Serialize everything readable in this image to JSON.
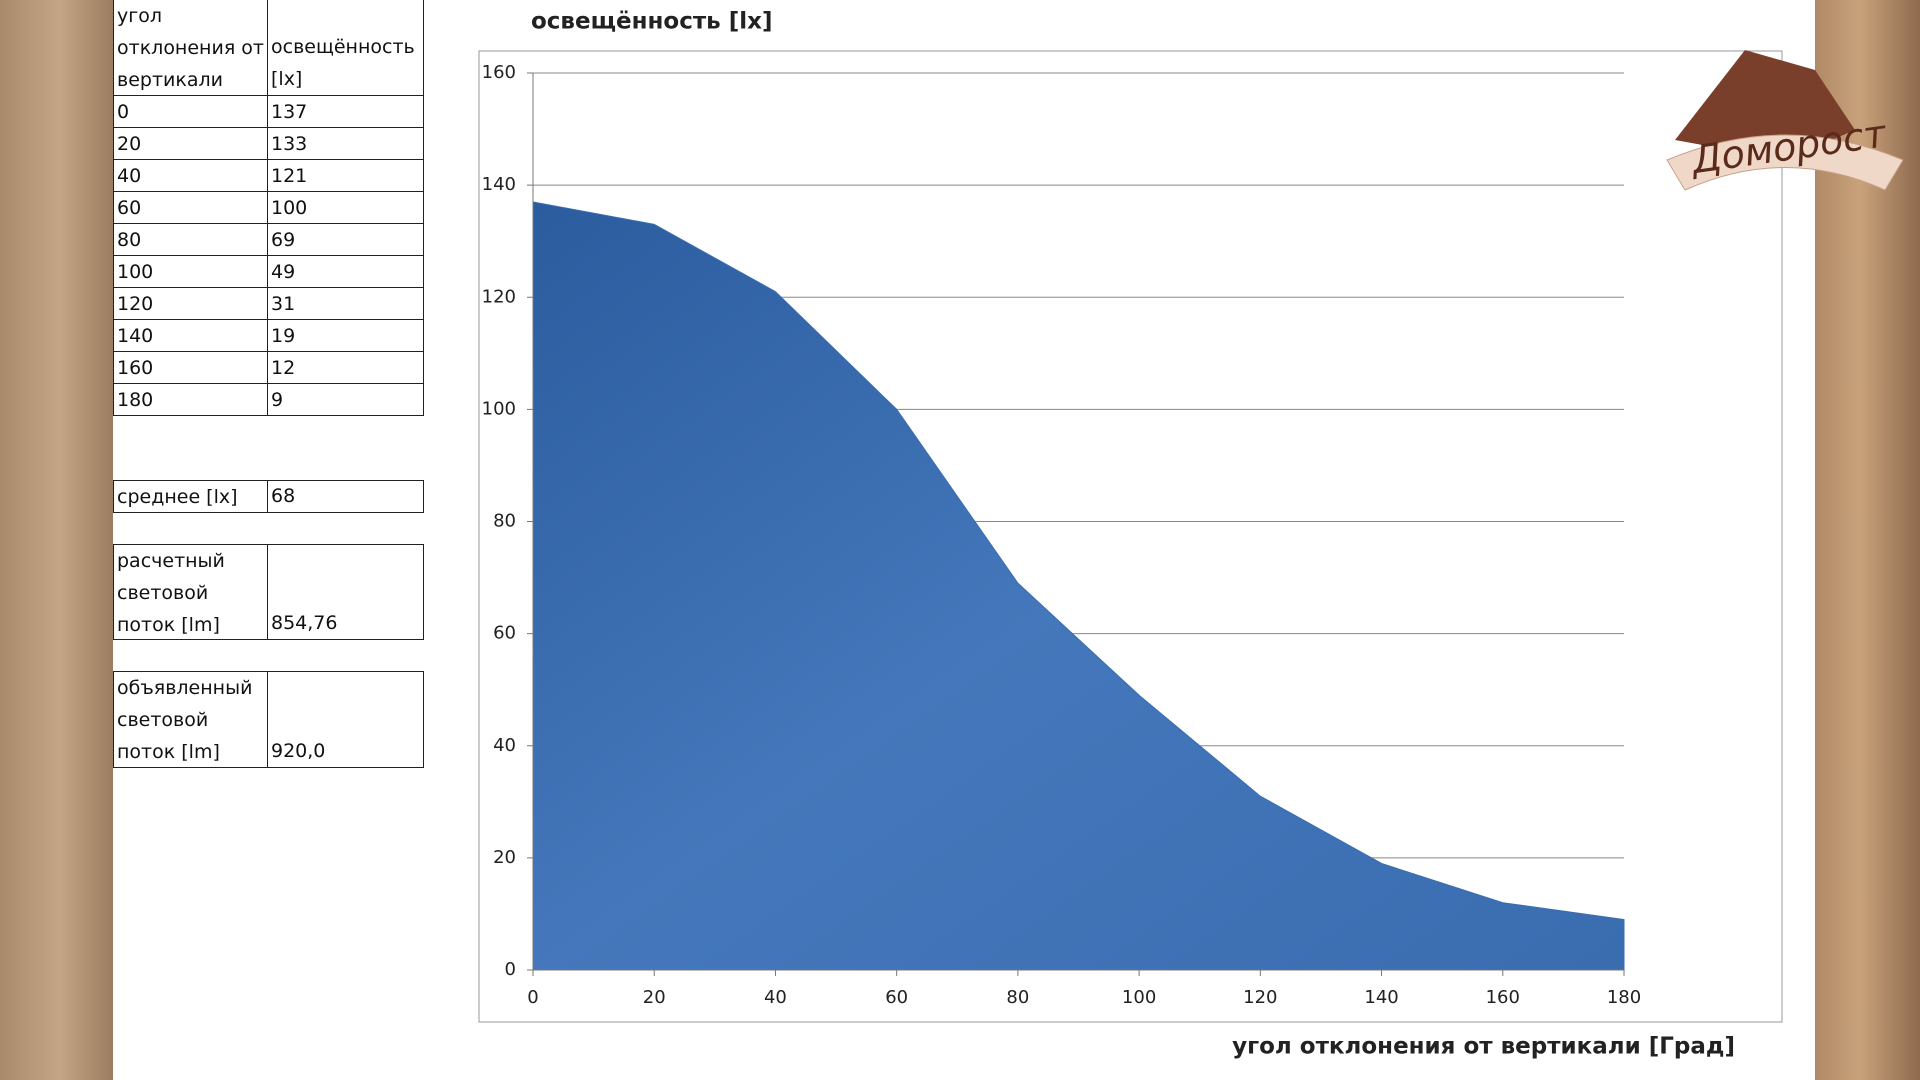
{
  "chart_data": {
    "type": "area",
    "title": "освещённость [lx]",
    "x_label": "угол отклонения от вертикали  [Град]",
    "x": [
      0,
      20,
      40,
      60,
      80,
      100,
      120,
      140,
      160,
      180
    ],
    "values": [
      137,
      133,
      121,
      100,
      69,
      49,
      31,
      19,
      12,
      9
    ],
    "color": "#3a6cb0",
    "xlim": [
      0,
      180
    ],
    "xticks": [
      0,
      20,
      40,
      60,
      80,
      100,
      120,
      140,
      160,
      180
    ],
    "ylim": [
      0,
      160
    ],
    "yticks": [
      0,
      20,
      40,
      60,
      80,
      100,
      120,
      140,
      160
    ],
    "grid": true
  },
  "table": {
    "header": [
      "угол отклонения от вертикали",
      "освещённость [lx]"
    ],
    "rows": [
      [
        0,
        137
      ],
      [
        20,
        133
      ],
      [
        40,
        121
      ],
      [
        60,
        100
      ],
      [
        80,
        69
      ],
      [
        100,
        49
      ],
      [
        120,
        31
      ],
      [
        140,
        19
      ],
      [
        160,
        12
      ],
      [
        180,
        9
      ]
    ]
  },
  "summary": [
    [
      "среднее  [lx]",
      "68"
    ],
    [
      "расчетный световой поток  [lm]",
      "854,76"
    ],
    [
      "объявленный световой поток  [lm]",
      "920,0"
    ]
  ],
  "logo": "Доморост"
}
